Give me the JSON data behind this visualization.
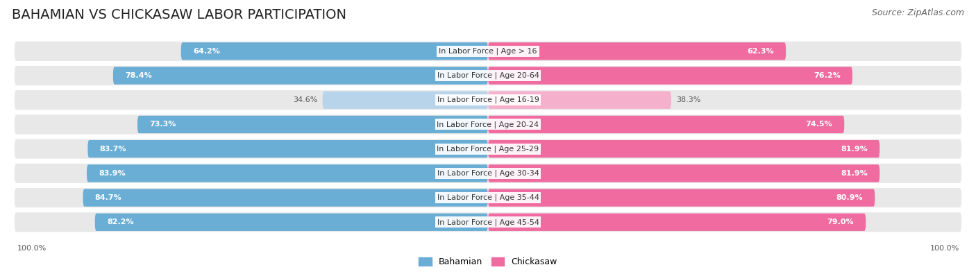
{
  "title": "BAHAMIAN VS CHICKASAW LABOR PARTICIPATION",
  "source": "Source: ZipAtlas.com",
  "categories": [
    "In Labor Force | Age > 16",
    "In Labor Force | Age 20-64",
    "In Labor Force | Age 16-19",
    "In Labor Force | Age 20-24",
    "In Labor Force | Age 25-29",
    "In Labor Force | Age 30-34",
    "In Labor Force | Age 35-44",
    "In Labor Force | Age 45-54"
  ],
  "bahamian": [
    64.2,
    78.4,
    34.6,
    73.3,
    83.7,
    83.9,
    84.7,
    82.2
  ],
  "chickasaw": [
    62.3,
    76.2,
    38.3,
    74.5,
    81.9,
    81.9,
    80.9,
    79.0
  ],
  "bahamian_color": "#6aaed6",
  "chickasaw_color": "#f06ca0",
  "bahamian_color_light": "#b8d4ea",
  "chickasaw_color_light": "#f5b0cc",
  "bg_row_color": "#e8e8e8",
  "legend_bahamian": "Bahamian",
  "legend_chickasaw": "Chickasaw",
  "title_fontsize": 14,
  "source_fontsize": 9,
  "label_fontsize": 8,
  "value_fontsize": 8
}
